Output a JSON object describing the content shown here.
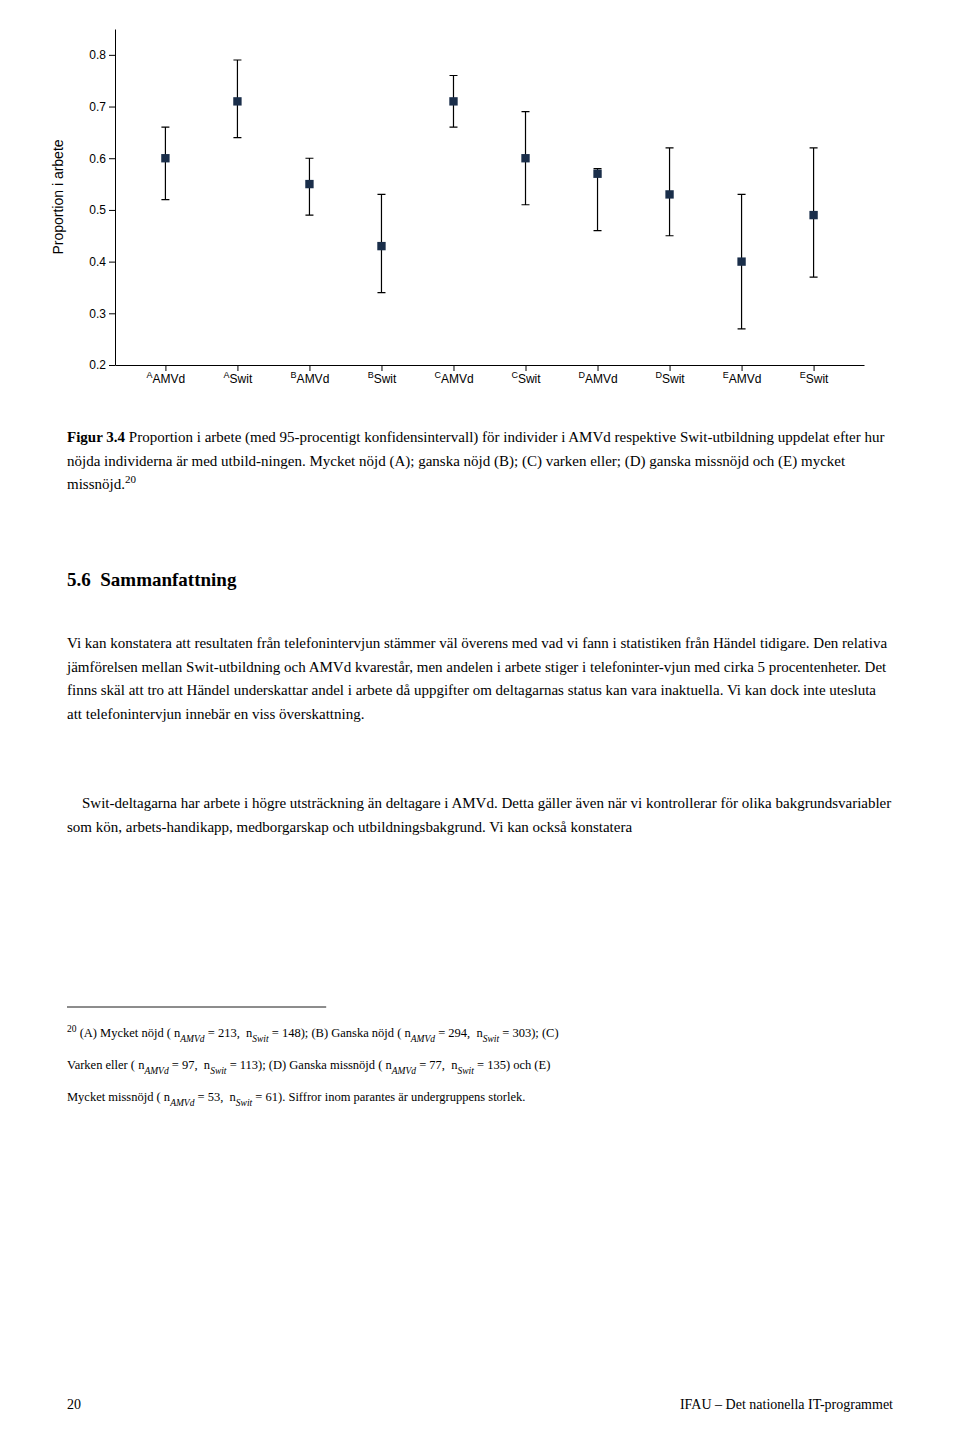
{
  "chart_data": {
    "type": "scatter",
    "categories": [
      "AMVd",
      "Swit",
      "AMVd",
      "Swit",
      "AMVd",
      "Swit",
      "AMVd",
      "Swit",
      "AMVd",
      "Swit"
    ],
    "category_superscripts": [
      "A",
      "A",
      "B",
      "B",
      "C",
      "C",
      "D",
      "D",
      "E",
      "E"
    ],
    "values": [
      0.6,
      0.71,
      0.55,
      0.43,
      0.71,
      0.6,
      0.57,
      0.53,
      0.4,
      0.49
    ],
    "ci_low": [
      0.52,
      0.64,
      0.49,
      0.34,
      0.66,
      0.51,
      0.46,
      0.45,
      0.27,
      0.37
    ],
    "ci_high": [
      0.66,
      0.79,
      0.6,
      0.53,
      0.76,
      0.69,
      0.58,
      0.62,
      0.53,
      0.62
    ],
    "ylabel": "Proportion i arbete",
    "ylim": [
      0.2,
      0.85
    ],
    "yticks": [
      0.2,
      0.3,
      0.4,
      0.5,
      0.6,
      0.7,
      0.8
    ],
    "color": "#1a2e4a",
    "marker": "square",
    "grid": false
  },
  "page": {
    "caption_label": "Figur 3.4",
    "caption": " Proportion i arbete (med 95-procentigt konfidensintervall) för individer i AMVd respektive Swit-utbildning uppdelat efter hur nöjda individerna är med utbild-ningen. Mycket nöjd (A); ganska nöjd (B); (C) varken eller; (D) ganska missnöjd och (E) mycket missnöjd.",
    "caption_note": "20",
    "heading": "5.6  Sammanfattning",
    "paragraphs": [
      "Vi kan konstatera att resultaten från telefonintervjun stämmer väl överens med vad vi fann i statistiken från Händel tidigare. Den relativa jämförelsen mellan Swit-utbildning och AMVd kvarestår, men andelen i arbete stiger i telefoninter-vjun med cirka 5 procentenheter. Det finns skäl att tro att Händel underskattar andel i arbete då uppgifter om deltagarnas status kan vara inaktuella. Vi kan dock inte utesluta att telefonintervjun innebär en viss överskattning.",
      "    Swit-deltagarna har arbete i högre utsträckning än deltagare i AMVd. Detta gäller även när vi kontrollerar för olika bakgrundsvariabler som kön, arbets-handikapp, medborgarskap och utbildningsbakgrund. Vi kan också konstatera"
    ],
    "footnotes": [
      [
        {
          "sup": "20"
        },
        " (A) Mycket nöjd ( n",
        {
          "sub": "AMVd"
        },
        " = 213,  n",
        {
          "sub": "Swit"
        },
        " = 148); (B) Ganska nöjd ( n",
        {
          "sub": "AMVd"
        },
        " = 294,  n",
        {
          "sub": "Swit"
        },
        " = 303); (C)"
      ],
      [
        "Varken eller ( n",
        {
          "sub": "AMVd"
        },
        " = 97,  n",
        {
          "sub": "Swit"
        },
        " = 113); (D) Ganska missnöjd ( n",
        {
          "sub": "AMVd"
        },
        " = 77,  n",
        {
          "sub": "Swit"
        },
        " = 135) och (E)"
      ],
      [
        "Mycket missnöjd ( n",
        {
          "sub": "AMVd"
        },
        " = 53,  n",
        {
          "sub": "Swit"
        },
        " = 61). Siffror inom parantes är undergruppens storlek."
      ]
    ],
    "footer_left": "20",
    "footer_right": "IFAU – Det nationella IT-programmet"
  }
}
